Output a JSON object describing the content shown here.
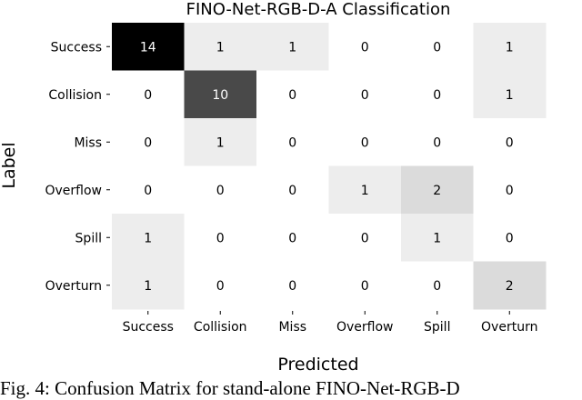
{
  "chart_data": {
    "type": "heatmap",
    "title": "FINO-Net-RGB-D-A Classification",
    "xlabel": "Predicted",
    "ylabel": "Label",
    "x_categories": [
      "Success",
      "Collision",
      "Miss",
      "Overflow",
      "Spill",
      "Overturn"
    ],
    "y_categories": [
      "Success",
      "Collision",
      "Miss",
      "Overflow",
      "Spill",
      "Overturn"
    ],
    "values": [
      [
        14,
        1,
        1,
        0,
        0,
        1
      ],
      [
        0,
        10,
        0,
        0,
        0,
        1
      ],
      [
        0,
        1,
        0,
        0,
        0,
        0
      ],
      [
        0,
        0,
        0,
        1,
        2,
        0
      ],
      [
        1,
        0,
        0,
        0,
        1,
        0
      ],
      [
        1,
        0,
        0,
        0,
        0,
        2
      ]
    ],
    "value_range": [
      0,
      14
    ],
    "colormap": [
      "#ffffff",
      "#000000"
    ],
    "grid": false
  },
  "caption": "Fig. 4: Confusion Matrix for stand-alone FINO-Net-RGB-D"
}
